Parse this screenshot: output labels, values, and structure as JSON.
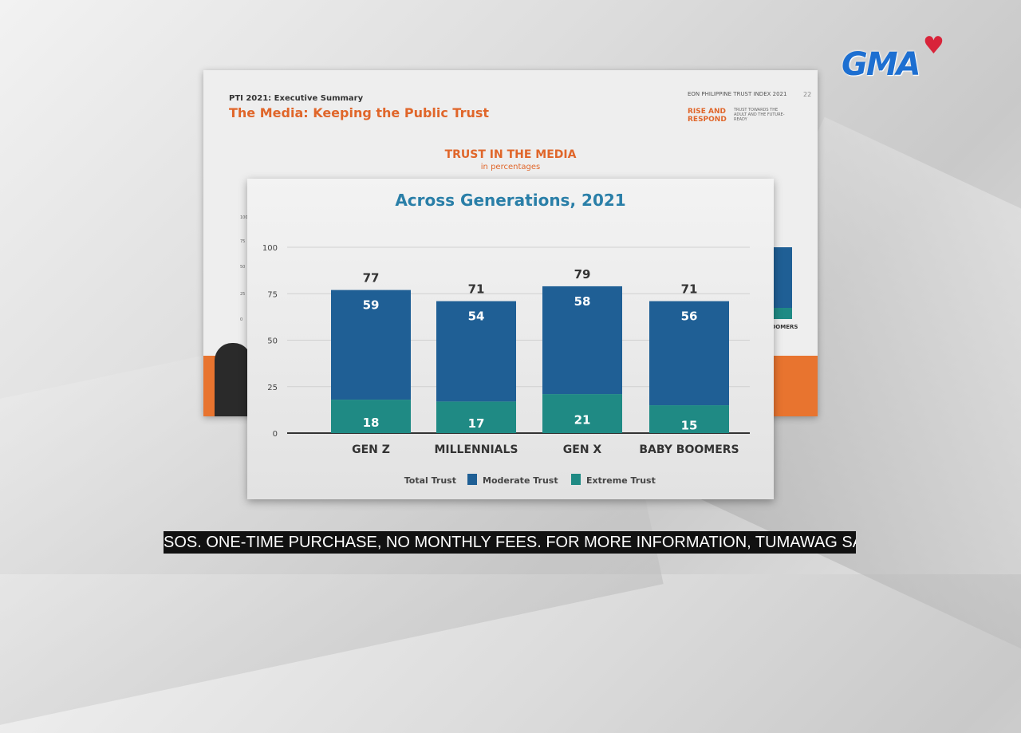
{
  "slide": {
    "subtitle": "PTI 2021: Executive Summary",
    "title": "The Media: Keeping the Public Trust",
    "logo_text": "EON PHILIPPINE TRUST INDEX 2021",
    "tagline": "RISE AND RESPOND",
    "tagline_small": "TRUST TOWARDS THE ADULT AND THE FUTURE-READY",
    "page_number": "22",
    "chart_title": "TRUST IN THE MEDIA",
    "chart_subtitle": "in percentages",
    "background_ticks": [
      "100",
      "75",
      "50",
      "25",
      "0"
    ],
    "background_label": "BOOMERS"
  },
  "chart_data": {
    "type": "bar",
    "stacked": true,
    "title": "Across Generations, 2021",
    "categories": [
      "GEN Z",
      "MILLENNIALS",
      "GEN X",
      "BABY BOOMERS"
    ],
    "totals": [
      77,
      71,
      79,
      71
    ],
    "series": [
      {
        "name": "Extreme Trust",
        "values": [
          18,
          17,
          21,
          15
        ],
        "color": "#1f8a84"
      },
      {
        "name": "Moderate Trust",
        "values": [
          59,
          54,
          58,
          56
        ],
        "color": "#1f5f95"
      }
    ],
    "total_label": "Total Trust",
    "ylim": [
      0,
      100
    ],
    "yticks": [
      0,
      25,
      50,
      75,
      100
    ],
    "grid": true,
    "legend": "bottom"
  },
  "channel": {
    "logo": "GMA",
    "color": "#1d6fd1"
  },
  "ticker": {
    "text": "SOS. ONE-TIME PURCHASE, NO MONTHLY FEES. FOR MORE INFORMATION, TUMAWAG SA HOTLI"
  }
}
